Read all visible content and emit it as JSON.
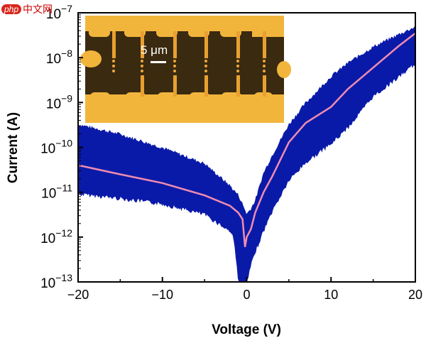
{
  "watermark": {
    "logo": "php",
    "text": "中文网"
  },
  "chart_data": {
    "type": "line",
    "title": "",
    "xlabel": "Voltage (V)",
    "ylabel": "Current (A)",
    "xlim": [
      -20,
      20
    ],
    "ylim": [
      1e-13,
      1e-07
    ],
    "yscale": "log",
    "xticks": [
      "−20",
      "−10",
      "0",
      "10",
      "20"
    ],
    "xtick_values": [
      -20,
      -10,
      0,
      10,
      20
    ],
    "yticks": [
      {
        "base": "10",
        "exp": "−7",
        "value": -7
      },
      {
        "base": "10",
        "exp": "−8",
        "value": -8
      },
      {
        "base": "10",
        "exp": "−9",
        "value": -9
      },
      {
        "base": "10",
        "exp": "−10",
        "value": -10
      },
      {
        "base": "10",
        "exp": "−11",
        "value": -11
      },
      {
        "base": "10",
        "exp": "−12",
        "value": -12
      },
      {
        "base": "10",
        "exp": "−13",
        "value": -13
      }
    ],
    "grid": false,
    "band": {
      "color": "#0a1aa8",
      "x": [
        -20,
        -15,
        -10,
        -5,
        -2,
        -1.5,
        -1,
        -0.5,
        0,
        0.5,
        1,
        2,
        3,
        5,
        7,
        10,
        12,
        15,
        18,
        20
      ],
      "upper": [
        3e-10,
        1.8e-10,
        9e-11,
        4e-11,
        1.3e-11,
        1e-11,
        8e-12,
        5e-12,
        3e-12,
        4e-12,
        6e-12,
        2.5e-11,
        6e-11,
        3e-10,
        9e-10,
        3.5e-09,
        7e-09,
        1.6e-08,
        3e-08,
        4.5e-08
      ],
      "lower": [
        1e-11,
        8e-12,
        6e-12,
        3.5e-12,
        1.5e-12,
        1e-12,
        1e-13,
        1e-13,
        1e-13,
        2.5e-13,
        5e-13,
        1.5e-12,
        4e-12,
        2e-11,
        5e-11,
        1.3e-10,
        3e-10,
        1.5e-09,
        4e-09,
        8e-09
      ]
    },
    "series": [
      {
        "color": "#f08cb0",
        "x": [
          -20,
          -15,
          -10,
          -5,
          -2,
          -1,
          -0.5,
          -0.2,
          0,
          0.5,
          1,
          2,
          3,
          5,
          7,
          10,
          12,
          15,
          18,
          20
        ],
        "y": [
          4e-11,
          2.5e-11,
          1.6e-11,
          8.5e-12,
          5e-12,
          3.5e-12,
          2.5e-12,
          6e-13,
          1e-12,
          1.5e-12,
          3.5e-12,
          1e-11,
          2.2e-11,
          1.3e-10,
          3.5e-10,
          8e-10,
          2e-09,
          6e-09,
          1.8e-08,
          3.5e-08
        ]
      }
    ],
    "inset": {
      "type": "micrograph",
      "scale_bar_label": "5 μm"
    }
  }
}
